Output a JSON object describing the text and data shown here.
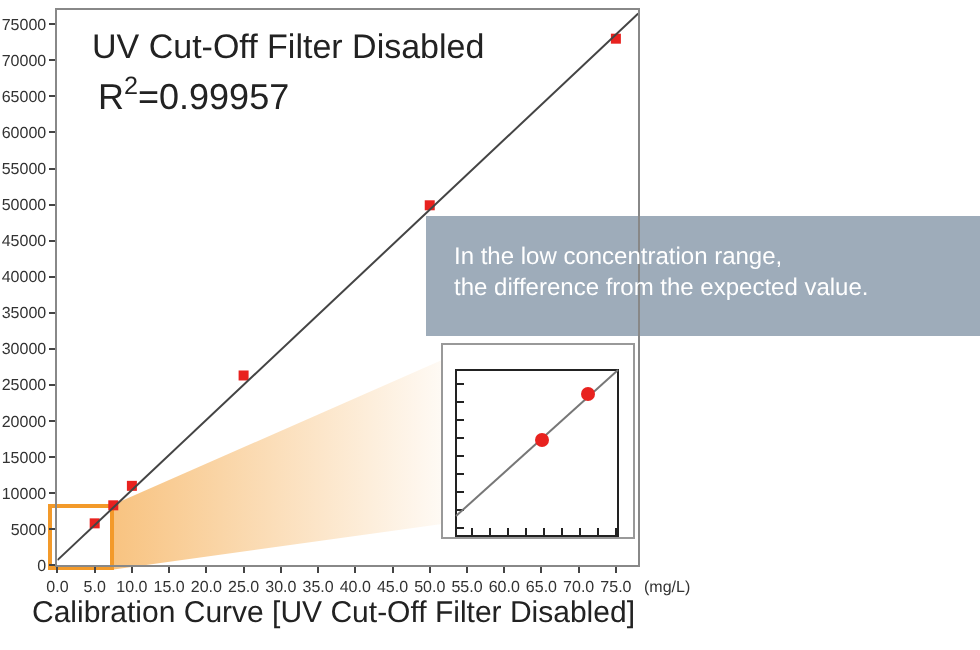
{
  "chart_data": [
    {
      "type": "scatter",
      "title": "UV Cut-Off Filter Disabled",
      "xlabel": "(mg/L)",
      "annotations": [
        "R$^{2}$=0.99957",
        "In the low concentration range,\nthe difference from the expected value.",
        "Calibration Curve [UV Cut-Off Filter Disabled]"
      ],
      "series": [
        {
          "color": "#e8221f",
          "marker": "square",
          "x": [
            5,
            7.5,
            10,
            25,
            50,
            75
          ],
          "values": [
            5800,
            8300,
            11000,
            26300,
            49900,
            73000
          ]
        },
        {
          "type": "line",
          "color": "#444444",
          "marker": "none",
          "line_style": "solid",
          "x": [
            0,
            78
          ],
          "values": [
            700,
            76500
          ]
        }
      ],
      "xlim": [
        0,
        78
      ],
      "ylim": [
        0,
        77000
      ],
      "xticks": [
        {
          "value": 0,
          "label": "0.0"
        },
        {
          "value": 5,
          "label": "5.0"
        },
        {
          "value": 10,
          "label": "10.0"
        },
        {
          "value": 15,
          "label": "15.0"
        },
        {
          "value": 20,
          "label": "20.0"
        },
        {
          "value": 25,
          "label": "25.0"
        },
        {
          "value": 30,
          "label": "30.0"
        },
        {
          "value": 35,
          "label": "35.0"
        },
        {
          "value": 40,
          "label": "40.0"
        },
        {
          "value": 45,
          "label": "45.0"
        },
        {
          "value": 50,
          "label": "50.0"
        },
        {
          "value": 55,
          "label": "55.0"
        },
        {
          "value": 60,
          "label": "60.0"
        },
        {
          "value": 65,
          "label": "65.0"
        },
        {
          "value": 70,
          "label": "70.0"
        },
        {
          "value": 75,
          "label": "75.0"
        }
      ],
      "yticks": [
        0,
        5000,
        10000,
        15000,
        20000,
        25000,
        30000,
        35000,
        40000,
        45000,
        50000,
        55000,
        60000,
        65000,
        70000,
        75000
      ],
      "grid": false
    }
  ]
}
